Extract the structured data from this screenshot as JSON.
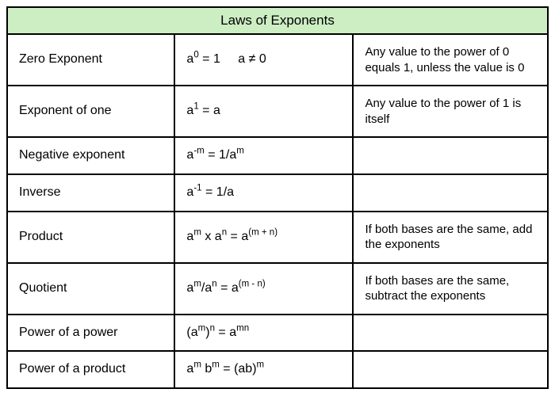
{
  "table": {
    "title": "Laws of Exponents",
    "header_bg": "#cdeec3",
    "border_color": "#000000",
    "background": "#ffffff",
    "font_family": "Arial",
    "title_fontsize": 17,
    "cell_fontsize": 16,
    "desc_fontsize": 15,
    "col_widths_pct": [
      31,
      33,
      36
    ],
    "rows": [
      {
        "name": "Zero Exponent",
        "formula_html": "a<sup>0</sup> = 1<span class=\"gap\"></span> a ≠ 0",
        "description": "Any value to the power of 0 equals 1, unless the value is 0"
      },
      {
        "name": "Exponent of one",
        "formula_html": "a<sup>1</sup> = a",
        "description": "Any value to the power of 1 is itself"
      },
      {
        "name": "Negative exponent",
        "formula_html": "a<sup>-m</sup> = 1/a<sup>m</sup>",
        "description": ""
      },
      {
        "name": "Inverse",
        "formula_html": "a<sup>-1</sup> = 1/a",
        "description": ""
      },
      {
        "name": "Product",
        "formula_html": "a<sup>m</sup> x a<sup>n</sup> = a<sup>(m + n)</sup>",
        "description": "If both bases are the same, add the exponents"
      },
      {
        "name": "Quotient",
        "formula_html": "a<sup>m</sup>/a<sup>n</sup> = a<sup>(m - n)</sup>",
        "description": "If both bases are the same, subtract the exponents"
      },
      {
        "name": "Power of a power",
        "formula_html": "(a<sup>m</sup>)<sup>n</sup> = a<sup>mn</sup>",
        "description": ""
      },
      {
        "name": "Power of a product",
        "formula_html": "a<sup>m</sup> b<sup>m</sup> = (ab)<sup>m</sup>",
        "description": ""
      }
    ]
  }
}
